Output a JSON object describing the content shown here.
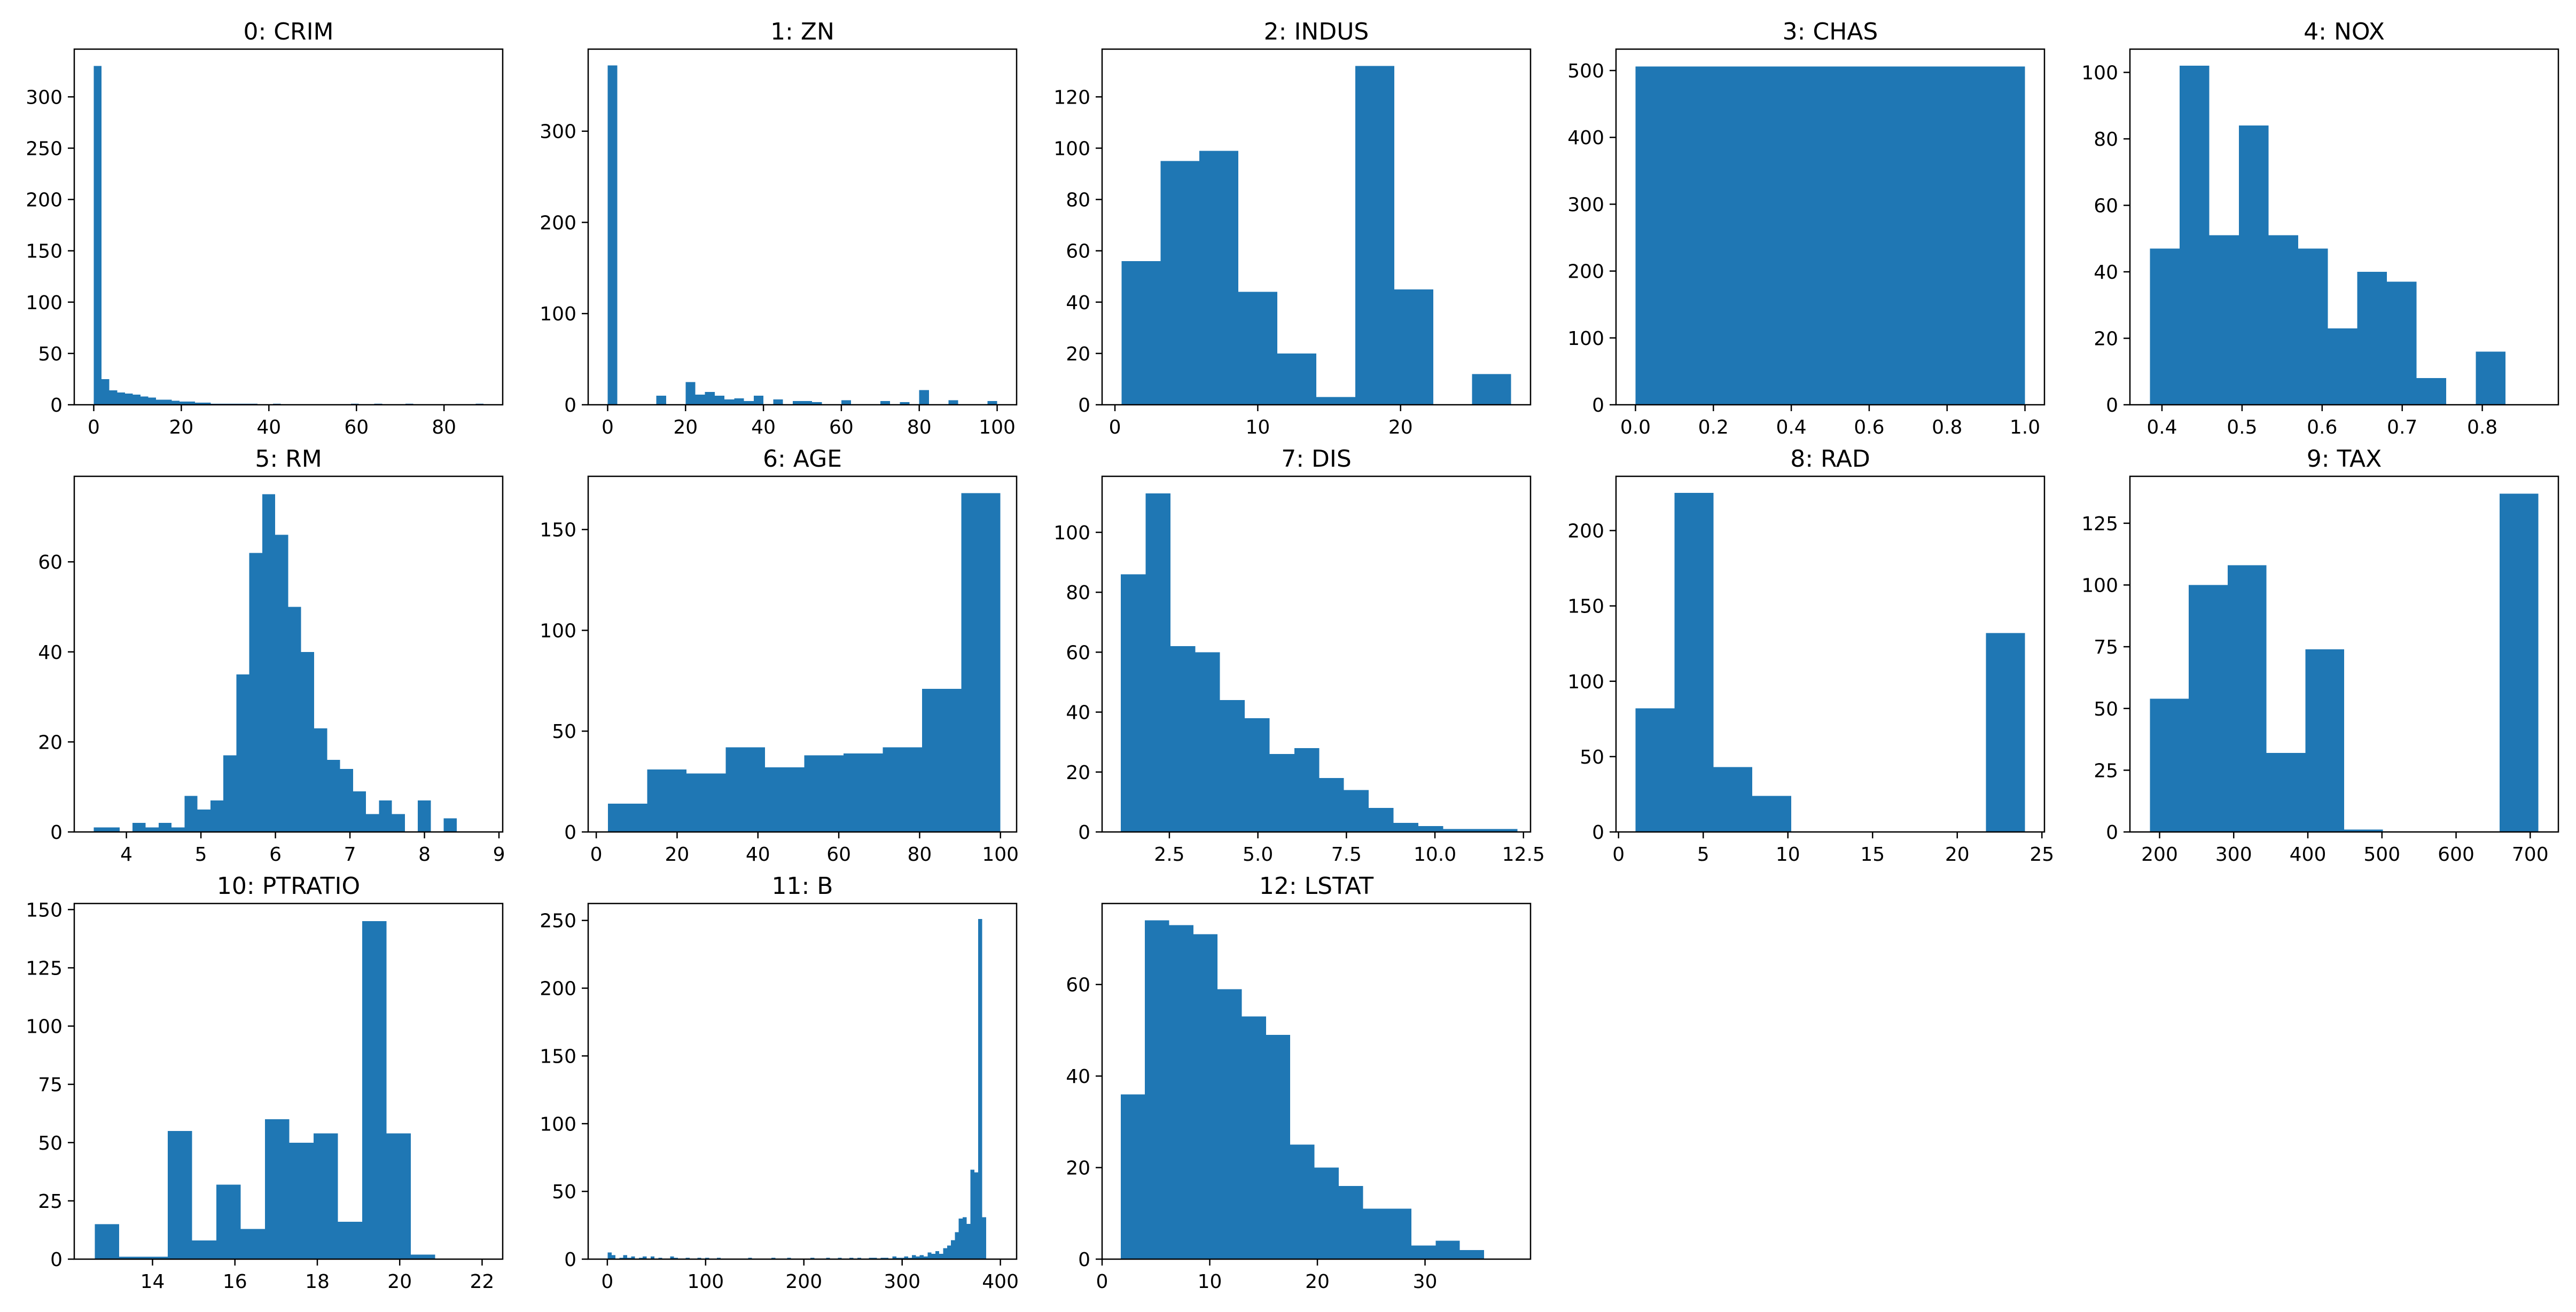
{
  "chart_data": [
    {
      "type": "bar",
      "title": "0: CRIM",
      "xlim": [
        -4.45,
        93.4
      ],
      "ylim": [
        0,
        346.5
      ],
      "xticks": [
        0,
        20,
        40,
        60,
        80
      ],
      "yticks": [
        0,
        50,
        100,
        150,
        200,
        250,
        300
      ],
      "bin_start": 0.0063,
      "bin_width": 1.78,
      "values": [
        330,
        25,
        14,
        12,
        11,
        10,
        8,
        7,
        5,
        5,
        4,
        3,
        3,
        2,
        2,
        1,
        1,
        1,
        1,
        1,
        1,
        0,
        0,
        1,
        0,
        0,
        0,
        0,
        0,
        0,
        0,
        0,
        0,
        1,
        0,
        0,
        1,
        0,
        0,
        0,
        1,
        0,
        0,
        0,
        0,
        0,
        0,
        0,
        0,
        1
      ]
    },
    {
      "type": "bar",
      "title": "1: ZN",
      "xlim": [
        -5,
        105
      ],
      "ylim": [
        0,
        390
      ],
      "xticks": [
        0,
        20,
        40,
        60,
        80,
        100
      ],
      "yticks": [
        0,
        100,
        200,
        300
      ],
      "bin_start": 0,
      "bin_width": 2.5,
      "values": [
        372,
        0,
        0,
        0,
        0,
        10,
        0,
        0,
        25,
        11,
        14,
        10,
        6,
        7,
        4,
        10,
        0,
        6,
        0,
        4,
        4,
        3,
        0,
        0,
        5,
        0,
        0,
        0,
        4,
        0,
        3,
        0,
        16,
        0,
        0,
        5,
        0,
        0,
        0,
        4
      ]
    },
    {
      "type": "bar",
      "title": "2: INDUS",
      "xlim": [
        -0.9,
        29.1
      ],
      "ylim": [
        0,
        138.6
      ],
      "xticks": [
        0,
        10,
        20
      ],
      "yticks": [
        0,
        20,
        40,
        60,
        80,
        100,
        120
      ],
      "bin_start": 0.46,
      "bin_width": 2.728,
      "values": [
        56,
        95,
        99,
        44,
        20,
        3,
        132,
        45,
        0,
        12
      ]
    },
    {
      "type": "bar",
      "title": "3: CHAS",
      "xlim": [
        -0.05,
        1.05
      ],
      "ylim": [
        0,
        532
      ],
      "xticks": [
        0.0,
        0.2,
        0.4,
        0.6,
        0.8,
        1.0
      ],
      "yticks": [
        0,
        100,
        200,
        300,
        400,
        500
      ],
      "bin_start": 0,
      "bin_width": 1,
      "values": [
        506
      ]
    },
    {
      "type": "bar",
      "title": "4: NOX",
      "xlim": [
        0.36,
        0.895
      ],
      "ylim": [
        0,
        107
      ],
      "xticks": [
        0.4,
        0.5,
        0.6,
        0.7,
        0.8
      ],
      "yticks": [
        0,
        20,
        40,
        60,
        80,
        100
      ],
      "bin_start": 0.385,
      "bin_width": 0.037,
      "values": [
        47,
        102,
        51,
        84,
        51,
        47,
        23,
        40,
        37,
        8,
        0,
        16
      ]
    },
    {
      "type": "bar",
      "title": "5: RM",
      "xlim": [
        3.3,
        9.05
      ],
      "ylim": [
        0,
        79
      ],
      "xticks": [
        4,
        5,
        6,
        7,
        8,
        9
      ],
      "yticks": [
        0,
        20,
        40,
        60
      ],
      "bin_start": 3.561,
      "bin_width": 0.174,
      "values": [
        1,
        1,
        0,
        2,
        1,
        2,
        1,
        8,
        5,
        7,
        17,
        35,
        62,
        75,
        66,
        50,
        40,
        23,
        16,
        14,
        9,
        4,
        7,
        4,
        0,
        7,
        0,
        3
      ]
    },
    {
      "type": "bar",
      "title": "6: AGE",
      "xlim": [
        -2,
        104
      ],
      "ylim": [
        0,
        176.4
      ],
      "xticks": [
        0,
        20,
        40,
        60,
        80,
        100
      ],
      "yticks": [
        0,
        50,
        100,
        150
      ],
      "bin_start": 2.9,
      "bin_width": 9.71,
      "values": [
        14,
        31,
        29,
        42,
        32,
        38,
        39,
        42,
        71,
        168
      ]
    },
    {
      "type": "bar",
      "title": "7: DIS",
      "xlim": [
        0.6,
        12.7
      ],
      "ylim": [
        0,
        118.7
      ],
      "xticks": [
        2.5,
        5.0,
        7.5,
        10.0,
        12.5
      ],
      "yticks": [
        0,
        20,
        40,
        60,
        80,
        100
      ],
      "bin_start": 1.13,
      "bin_width": 0.7,
      "values": [
        86,
        113,
        62,
        60,
        44,
        38,
        26,
        28,
        18,
        14,
        8,
        3,
        2,
        1,
        1,
        1
      ]
    },
    {
      "type": "bar",
      "title": "8: RAD",
      "xlim": [
        -0.15,
        25.15
      ],
      "ylim": [
        0,
        236
      ],
      "xticks": [
        0,
        5,
        10,
        15,
        20,
        25
      ],
      "yticks": [
        0,
        50,
        100,
        150,
        200
      ],
      "bin_start": 1,
      "bin_width": 2.3,
      "values": [
        82,
        225,
        43,
        24,
        0,
        0,
        0,
        0,
        0,
        132
      ]
    },
    {
      "type": "bar",
      "title": "9: TAX",
      "xlim": [
        160,
        738
      ],
      "ylim": [
        0,
        144
      ],
      "xticks": [
        200,
        300,
        400,
        500,
        600,
        700
      ],
      "yticks": [
        0,
        25,
        50,
        75,
        100,
        125
      ],
      "bin_start": 187,
      "bin_width": 52.4,
      "values": [
        54,
        100,
        108,
        32,
        74,
        1,
        0,
        0,
        0,
        137
      ]
    },
    {
      "type": "bar",
      "title": "10: PTRATIO",
      "xlim": [
        12.1,
        22.5
      ],
      "ylim": [
        0,
        152.6
      ],
      "xticks": [
        14,
        16,
        18,
        20,
        22
      ],
      "yticks": [
        0,
        25,
        50,
        75,
        100,
        125,
        150
      ],
      "bin_start": 12.6,
      "bin_width": 0.59,
      "values": [
        15,
        1,
        1,
        55,
        8,
        32,
        13,
        60,
        50,
        54,
        16,
        145,
        54,
        2
      ]
    },
    {
      "type": "bar",
      "title": "11: B",
      "xlim": [
        -19.5,
        416.5
      ],
      "ylim": [
        0,
        262.5
      ],
      "xticks": [
        0,
        100,
        200,
        300,
        400
      ],
      "yticks": [
        0,
        50,
        100,
        150,
        200,
        250
      ],
      "bin_start": 0.32,
      "bin_width": 3.97,
      "values": [
        5,
        3,
        0,
        1,
        3,
        1,
        2,
        0,
        1,
        2,
        0,
        2,
        0,
        1,
        0,
        0,
        2,
        1,
        0,
        0,
        1,
        0,
        0,
        1,
        0,
        1,
        0,
        0,
        1,
        0,
        0,
        0,
        0,
        0,
        0,
        0,
        1,
        0,
        0,
        0,
        0,
        0,
        1,
        0,
        0,
        0,
        1,
        0,
        0,
        0,
        0,
        0,
        1,
        0,
        0,
        0,
        1,
        0,
        0,
        1,
        0,
        0,
        1,
        0,
        1,
        0,
        0,
        1,
        1,
        0,
        1,
        1,
        0,
        2,
        1,
        1,
        2,
        1,
        3,
        2,
        3,
        2,
        5,
        4,
        6,
        4,
        8,
        10,
        14,
        20,
        30,
        31,
        26,
        66,
        64,
        251,
        31,
        0,
        0,
        0
      ]
    },
    {
      "type": "bar",
      "title": "12: LSTAT",
      "xlim": [
        0,
        39.8
      ],
      "ylim": [
        0,
        77.7
      ],
      "xticks": [
        0,
        10,
        20,
        30
      ],
      "yticks": [
        0,
        20,
        40,
        60
      ],
      "bin_start": 1.73,
      "bin_width": 2.25,
      "values": [
        36,
        74,
        73,
        71,
        59,
        53,
        49,
        25,
        20,
        16,
        11,
        11,
        3,
        4,
        2
      ]
    }
  ],
  "colors": {
    "bar": "#1f77b4",
    "axes": "#000000",
    "background": "#ffffff"
  }
}
